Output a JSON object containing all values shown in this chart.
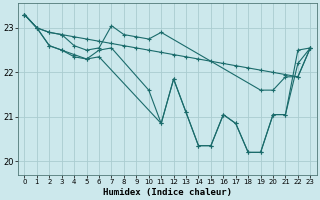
{
  "xlabel": "Humidex (Indice chaleur)",
  "bg_color": "#cce8ec",
  "grid_color": "#aaccd0",
  "line_color": "#1a6b6b",
  "xlim": [
    -0.5,
    23.5
  ],
  "ylim": [
    19.7,
    23.55
  ],
  "yticks": [
    20,
    21,
    22,
    23
  ],
  "xticks": [
    0,
    1,
    2,
    3,
    4,
    5,
    6,
    7,
    8,
    9,
    10,
    11,
    12,
    13,
    14,
    15,
    16,
    17,
    18,
    19,
    20,
    21,
    22,
    23
  ],
  "lines": [
    {
      "x": [
        0,
        1,
        2,
        3,
        4,
        5,
        6,
        7,
        8,
        9,
        10,
        11,
        12,
        13,
        14,
        15,
        16,
        17,
        18,
        19,
        20,
        21,
        22,
        23
      ],
      "y": [
        23.3,
        23.0,
        22.9,
        22.85,
        22.8,
        22.75,
        22.7,
        22.65,
        22.6,
        22.55,
        22.5,
        22.45,
        22.4,
        22.35,
        22.3,
        22.25,
        22.2,
        22.15,
        22.1,
        22.05,
        22.0,
        21.95,
        21.9,
        22.55
      ]
    },
    {
      "x": [
        0,
        1,
        2,
        3,
        4,
        5,
        6,
        7,
        8,
        9,
        10,
        11,
        19,
        20,
        21,
        22,
        23
      ],
      "y": [
        23.3,
        23.0,
        22.9,
        22.85,
        22.6,
        22.5,
        22.55,
        23.05,
        22.85,
        22.8,
        22.75,
        22.9,
        21.6,
        21.6,
        21.9,
        21.9,
        22.55
      ]
    },
    {
      "x": [
        0,
        1,
        2,
        3,
        4,
        5,
        6,
        7,
        10,
        11,
        12,
        13,
        14,
        15,
        16,
        17,
        18,
        19,
        20,
        21,
        22,
        23
      ],
      "y": [
        23.3,
        23.0,
        22.6,
        22.5,
        22.4,
        22.3,
        22.5,
        22.55,
        21.6,
        20.85,
        21.85,
        21.1,
        20.35,
        20.35,
        21.05,
        20.85,
        20.2,
        20.2,
        21.05,
        21.05,
        22.5,
        22.55
      ]
    },
    {
      "x": [
        0,
        1,
        2,
        3,
        4,
        5,
        6,
        11,
        12,
        13,
        14,
        15,
        16,
        17,
        18,
        19,
        20,
        21,
        22,
        23
      ],
      "y": [
        23.3,
        23.0,
        22.6,
        22.5,
        22.35,
        22.3,
        22.35,
        20.85,
        21.85,
        21.1,
        20.35,
        20.35,
        21.05,
        20.85,
        20.2,
        20.2,
        21.05,
        21.05,
        22.2,
        22.55
      ]
    }
  ]
}
